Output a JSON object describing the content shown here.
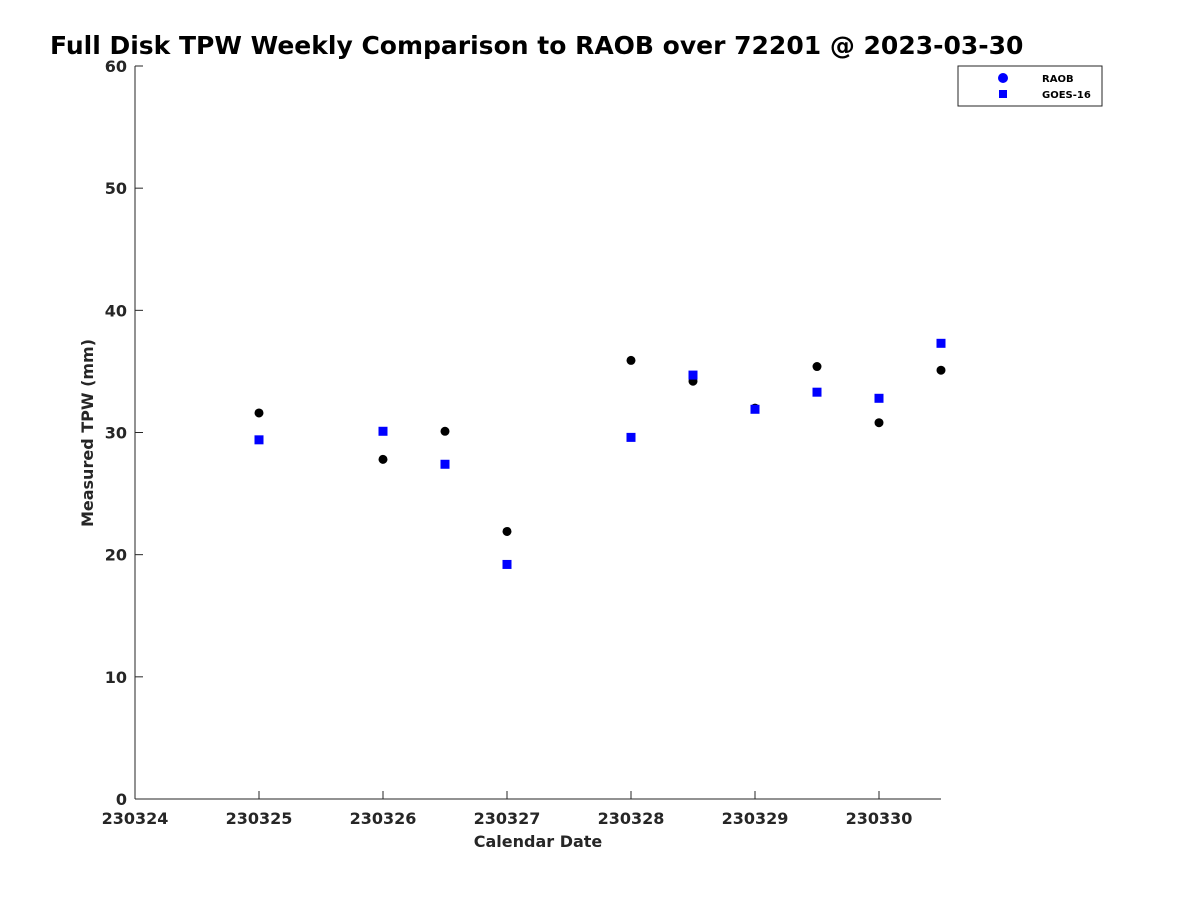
{
  "chart_data": {
    "type": "scatter",
    "title": "Full Disk TPW Weekly Comparison to RAOB over 72201 @ 2023-03-30",
    "xlabel": "Calendar Date",
    "ylabel": "Measured TPW (mm)",
    "xlim": [
      "2023-03-24",
      "2023-03-30 12:00"
    ],
    "ylim": [
      0,
      60
    ],
    "x_ticks": [
      {
        "x": "2023-03-24",
        "label": "230324"
      },
      {
        "x": "2023-03-25",
        "label": "230325"
      },
      {
        "x": "2023-03-26",
        "label": "230326"
      },
      {
        "x": "2023-03-27",
        "label": "230327"
      },
      {
        "x": "2023-03-28",
        "label": "230328"
      },
      {
        "x": "2023-03-29",
        "label": "230329"
      },
      {
        "x": "2023-03-30",
        "label": "230330"
      }
    ],
    "y_ticks": [
      0,
      10,
      20,
      30,
      40,
      50,
      60
    ],
    "grid": false,
    "legend_position": "top-right",
    "series": [
      {
        "name": "RAOB",
        "marker": "circle",
        "color": "#000000",
        "legend_color": "#0000ff",
        "points": [
          {
            "x": "2023-03-25 00:00",
            "y": 31.6
          },
          {
            "x": "2023-03-26 00:00",
            "y": 27.8
          },
          {
            "x": "2023-03-26 12:00",
            "y": 30.1
          },
          {
            "x": "2023-03-27 00:00",
            "y": 21.9
          },
          {
            "x": "2023-03-28 00:00",
            "y": 35.9
          },
          {
            "x": "2023-03-28 12:00",
            "y": 34.2
          },
          {
            "x": "2023-03-29 00:00",
            "y": 32.0
          },
          {
            "x": "2023-03-29 12:00",
            "y": 35.4
          },
          {
            "x": "2023-03-30 00:00",
            "y": 30.8
          },
          {
            "x": "2023-03-30 12:00",
            "y": 35.1
          }
        ]
      },
      {
        "name": "GOES-16",
        "marker": "square",
        "color": "#0000ff",
        "points": [
          {
            "x": "2023-03-25 00:00",
            "y": 29.4
          },
          {
            "x": "2023-03-26 00:00",
            "y": 30.1
          },
          {
            "x": "2023-03-26 12:00",
            "y": 27.4
          },
          {
            "x": "2023-03-27 00:00",
            "y": 19.2
          },
          {
            "x": "2023-03-28 00:00",
            "y": 29.6
          },
          {
            "x": "2023-03-28 12:00",
            "y": 34.7
          },
          {
            "x": "2023-03-29 00:00",
            "y": 31.9
          },
          {
            "x": "2023-03-29 12:00",
            "y": 33.3
          },
          {
            "x": "2023-03-30 00:00",
            "y": 32.8
          },
          {
            "x": "2023-03-30 12:00",
            "y": 37.3
          }
        ]
      }
    ]
  }
}
